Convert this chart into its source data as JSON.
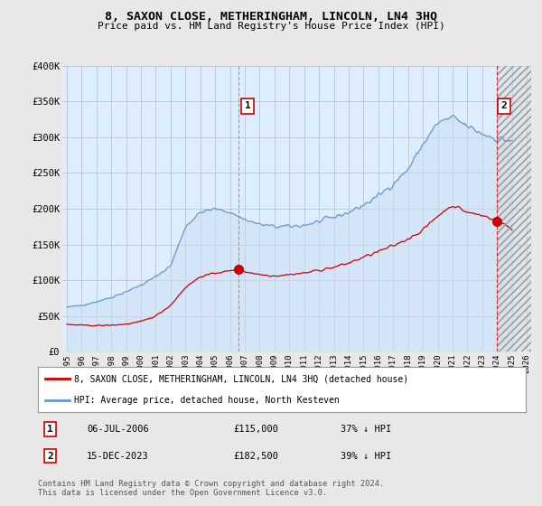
{
  "title": "8, SAXON CLOSE, METHERINGHAM, LINCOLN, LN4 3HQ",
  "subtitle": "Price paid vs. HM Land Registry's House Price Index (HPI)",
  "ylim": [
    0,
    400000
  ],
  "yticks": [
    0,
    50000,
    100000,
    150000,
    200000,
    250000,
    300000,
    350000,
    400000
  ],
  "ytick_labels": [
    "£0",
    "£50K",
    "£100K",
    "£150K",
    "£200K",
    "£250K",
    "£300K",
    "£350K",
    "£400K"
  ],
  "background_color": "#e8e8e8",
  "plot_background_color": "#ddeeff",
  "grid_color": "#bbbbcc",
  "hpi_color": "#6699cc",
  "hpi_fill_color": "#ccddf0",
  "price_color": "#cc0000",
  "legend_line1": "8, SAXON CLOSE, METHERINGHAM, LINCOLN, LN4 3HQ (detached house)",
  "legend_line2": "HPI: Average price, detached house, North Kesteven",
  "note1_num": "1",
  "note1_date": "06-JUL-2006",
  "note1_price": "£115,000",
  "note1_hpi": "37% ↓ HPI",
  "note2_num": "2",
  "note2_date": "15-DEC-2023",
  "note2_price": "£182,500",
  "note2_hpi": "39% ↓ HPI",
  "footer": "Contains HM Land Registry data © Crown copyright and database right 2024.\nThis data is licensed under the Open Government Licence v3.0.",
  "sale1_x": 11.58,
  "sale1_y": 115000,
  "sale2_x": 28.96,
  "sale2_y": 182500,
  "hatch_start_x": 29.0,
  "xlim_start": -0.3,
  "xlim_end": 31.3
}
